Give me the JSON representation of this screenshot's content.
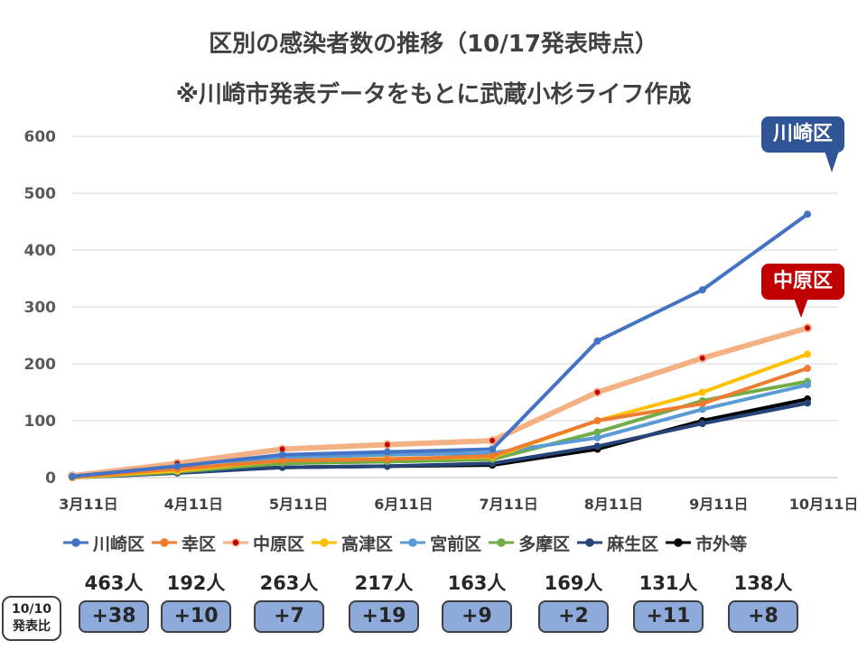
{
  "title_line1": "区別の感染者数の推移（10/17発表時点）",
  "title_line2": "※川崎市発表データをもとに武蔵小杉ライフ作成",
  "callouts": {
    "kawasaki": "川崎区",
    "nakahara": "中原区"
  },
  "compare_label": {
    "line1": "10/10",
    "line2": "発表比"
  },
  "chart_data": {
    "type": "line",
    "x": [
      "3月11日",
      "4月11日",
      "5月11日",
      "6月11日",
      "7月11日",
      "8月11日",
      "9月11日",
      "10月11日"
    ],
    "x_ticks": [
      "3月11日",
      "4月11日",
      "5月11日",
      "6月11日",
      "7月11日",
      "8月11日",
      "9月11日",
      "10月11日"
    ],
    "ylim": [
      0,
      600
    ],
    "y_ticks": [
      0,
      100,
      200,
      300,
      400,
      500,
      600
    ],
    "grid": true,
    "legend_position": "bottom",
    "series": [
      {
        "name": "川崎区",
        "color": "#4472c4",
        "values": [
          2,
          20,
          40,
          45,
          50,
          240,
          330,
          463
        ]
      },
      {
        "name": "幸区",
        "color": "#ed7d31",
        "values": [
          1,
          15,
          30,
          32,
          38,
          100,
          130,
          192
        ]
      },
      {
        "name": "中原区",
        "color": "#f4b183",
        "values": [
          3,
          25,
          50,
          58,
          65,
          150,
          210,
          263
        ]
      },
      {
        "name": "高津区",
        "color": "#ffc000",
        "values": [
          0,
          12,
          30,
          33,
          36,
          100,
          150,
          217
        ]
      },
      {
        "name": "宮前区",
        "color": "#5b9bd5",
        "values": [
          0,
          12,
          35,
          40,
          43,
          70,
          120,
          163
        ]
      },
      {
        "name": "多摩区",
        "color": "#70ad47",
        "values": [
          0,
          10,
          25,
          28,
          32,
          80,
          135,
          169
        ]
      },
      {
        "name": "麻生区",
        "color": "#264478",
        "values": [
          0,
          8,
          18,
          20,
          25,
          55,
          95,
          131
        ]
      },
      {
        "name": "市外等",
        "color": "#000000",
        "values": [
          0,
          10,
          18,
          20,
          22,
          50,
          100,
          138
        ]
      }
    ]
  },
  "totals": [
    "463人",
    "192人",
    "263人",
    "217人",
    "163人",
    "169人",
    "131人",
    "138人"
  ],
  "diffs": [
    "+38",
    "+10",
    "+7",
    "+19",
    "+9",
    "+2",
    "+11",
    "+8"
  ]
}
